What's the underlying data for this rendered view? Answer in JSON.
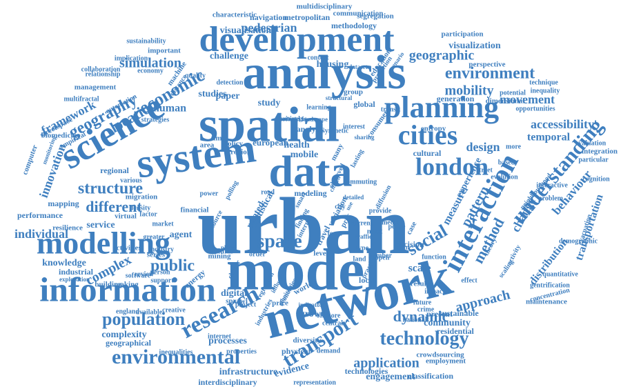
{
  "colors": {
    "word": "#3f7fbf",
    "background": "#ffffff"
  },
  "cloud": {
    "words": [
      "urban",
      "model",
      "network",
      "spatial",
      "analysis",
      "data",
      "system",
      "science",
      "development",
      "information",
      "modelling",
      "planning",
      "cities",
      "interaction",
      "london",
      "environmental",
      "research",
      "transport",
      "technology",
      "understanding",
      "population",
      "environment",
      "economic",
      "geography",
      "location",
      "structure",
      "different",
      "space",
      "social",
      "public",
      "complex",
      "dynamic",
      "mobility",
      "geographic",
      "simulation",
      "pedestrian",
      "application",
      "method",
      "pattern",
      "approach",
      "design",
      "scale",
      "framework",
      "innovation",
      "accessibility",
      "movement",
      "behaviour",
      "transportation",
      "distribution",
      "change",
      "temporal",
      "visualisation",
      "visualization",
      "human",
      "studies",
      "paper",
      "study",
      "housing",
      "challenge",
      "metropolitan",
      "navigation",
      "methodology",
      "multidisciplinary",
      "characteristic",
      "communication",
      "segregation",
      "participation",
      "perspective",
      "sustainability",
      "important",
      "economy",
      "management",
      "multifractal",
      "collaboration",
      "computer",
      "mapping",
      "resilience",
      "performance",
      "individual",
      "service",
      "regional",
      "agent",
      "knowledge",
      "industrial",
      "exploration",
      "building",
      "making",
      "software",
      "support",
      "energy",
      "digital",
      "sprawl",
      "growth",
      "world",
      "community",
      "sustainable",
      "residential",
      "complexity",
      "geographical",
      "processes",
      "infrastructure",
      "interdisciplinary",
      "internet",
      "inequalities",
      "properties",
      "physical",
      "diversity",
      "demand",
      "evidence",
      "technologies",
      "engagement",
      "classification",
      "crowdsourcing",
      "employment",
      "representation",
      "maintenance",
      "concentration",
      "gentrification",
      "quantitative",
      "demographic",
      "evacuation",
      "neighbourhood",
      "problem",
      "interactive",
      "particular",
      "cognition",
      "integration",
      "evaluation",
      "opportunities",
      "inequality",
      "technique",
      "dimensional",
      "potential",
      "generation",
      "present",
      "decision",
      "function",
      "result",
      "scaling",
      "activity",
      "theory",
      "measure",
      "experience",
      "evolution",
      "street",
      "based",
      "more",
      "cultural",
      "entropy",
      "european",
      "analytic",
      "health",
      "mobile",
      "region",
      "policy",
      "area",
      "time",
      "local",
      "effect",
      "impact",
      "future",
      "crime",
      "national",
      "variation",
      "related",
      "statistical",
      "modeling",
      "smart",
      "travel",
      "city",
      "level",
      "form",
      "type",
      "land",
      "open",
      "case",
      "media",
      "power",
      "series",
      "person",
      "review",
      "migration",
      "density",
      "factor",
      "market",
      "greater",
      "virtual",
      "various",
      "financial",
      "creative",
      "available",
      "england",
      "industries",
      "economies",
      "regression",
      "cluster",
      "central",
      "offshore",
      "indicator",
      "global",
      "group",
      "learning",
      "dataset",
      "education",
      "prediction",
      "detection",
      "machine",
      "distance",
      "quality",
      "strategies",
      "empirical",
      "automation",
      "streetspace",
      "biomedicine",
      "monitoring",
      "relationship",
      "implication",
      "activities",
      "industry",
      "mining",
      "order",
      "road",
      "most",
      "current",
      "number",
      "traffic",
      "police",
      "proc",
      "use",
      "finding",
      "source",
      "polling",
      "cellular",
      "place",
      "price",
      "ethnicity",
      "project",
      "influence",
      "observed",
      "many",
      "internal",
      "term",
      "practice",
      "interest",
      "structural",
      "strategic",
      "consumer",
      "context",
      "scenario",
      "lasting",
      "provide",
      "diffusion",
      "detailed",
      "citizen",
      "commuting",
      "transit",
      "sharing",
      "landscape",
      "critical",
      "synthetic",
      "routing",
      "identify",
      "ranking",
      "accuracy",
      "specific",
      "account",
      "planners",
      "cost",
      "point",
      "estimate",
      "natural",
      "sensor",
      "track",
      "flows"
    ]
  }
}
